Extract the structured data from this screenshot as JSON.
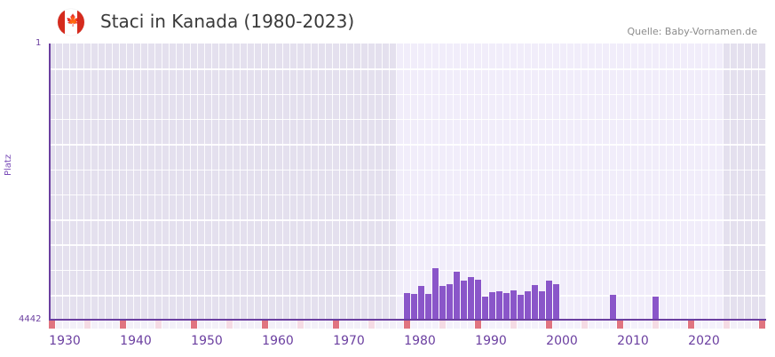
{
  "header": {
    "title": "Staci in Kanada (1980-2023)",
    "source": "Quelle: Baby-Vornamen.de",
    "flag_icon": "canada-flag-icon"
  },
  "colors": {
    "bar": "#8a56c9",
    "axis": "#6b3fa0",
    "bg_dark": "#e4e0ee",
    "bg_light": "#f1edfa",
    "decade_tick": "#e07480",
    "half_decade_tick": "#f5dbe4"
  },
  "chart_data": {
    "type": "bar",
    "title": "Staci in Kanada (1980-2023)",
    "xlabel": "",
    "ylabel": "Platz",
    "y_inverted": true,
    "ylim": [
      4442,
      1
    ],
    "yticks": [
      "1",
      "4442"
    ],
    "xlim": [
      1928,
      2028
    ],
    "xticks": [
      1930,
      1940,
      1950,
      1960,
      1970,
      1980,
      1990,
      2000,
      2010,
      2020
    ],
    "highlight_range": [
      1977,
      2022
    ],
    "grid": true,
    "categories": [
      1978,
      1979,
      1980,
      1981,
      1982,
      1983,
      1984,
      1985,
      1986,
      1987,
      1988,
      1989,
      1990,
      1991,
      1992,
      1993,
      1994,
      1995,
      1996,
      1997,
      1998,
      1999,
      2007,
      2013
    ],
    "values": [
      4014,
      4028,
      3900,
      4028,
      3614,
      3900,
      3871,
      3671,
      3814,
      3757,
      3800,
      4071,
      4000,
      3985,
      4014,
      3971,
      4042,
      3985,
      3885,
      3985,
      3814,
      3871,
      4042,
      4071
    ]
  },
  "labels": {
    "y_top": "1",
    "y_bottom": "4442",
    "y_title": "Platz",
    "x": [
      "1930",
      "1940",
      "1950",
      "1960",
      "1970",
      "1980",
      "1990",
      "2000",
      "2010",
      "2020"
    ]
  }
}
